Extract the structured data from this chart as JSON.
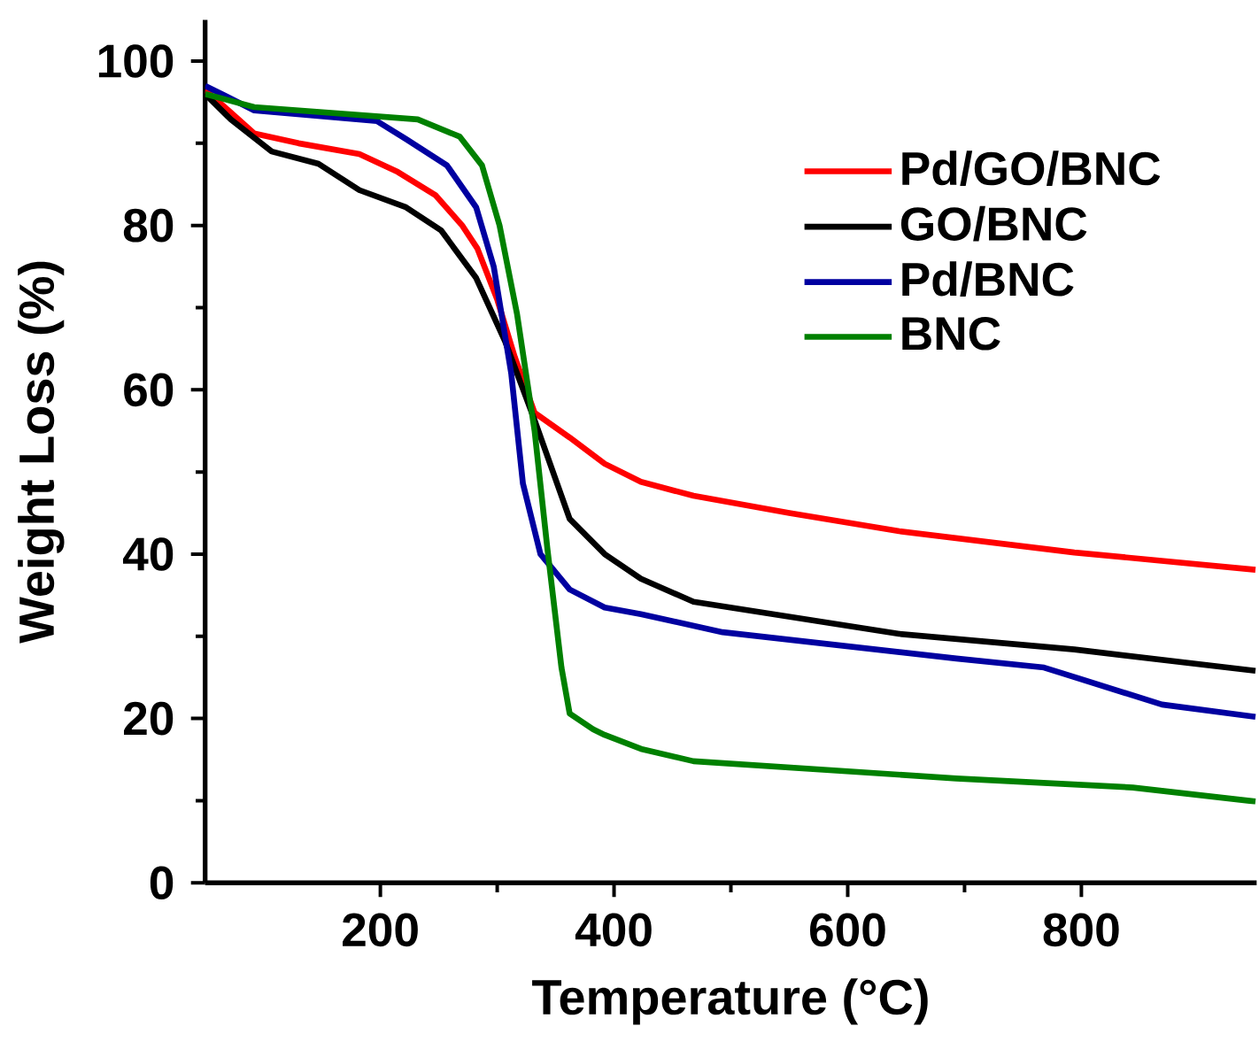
{
  "chart_data": {
    "type": "line",
    "xlabel": "Temperature (°C)",
    "ylabel": "Weight Loss (%)",
    "xlim": [
      50,
      950
    ],
    "ylim": [
      0,
      105
    ],
    "xticks": [
      200,
      400,
      600,
      800
    ],
    "yticks": [
      0,
      20,
      40,
      60,
      80,
      100
    ],
    "legend": "top right",
    "line_style": "solid",
    "series": [
      {
        "name": "Pd/GO/BNC",
        "color": "#ff0000",
        "x": [
          50,
          70,
          92,
          130,
          182,
          215,
          247,
          270,
          283,
          300,
          315,
          332,
          362,
          392,
          423,
          468,
          550,
          644,
          794,
          949
        ],
        "values": [
          96.5,
          94,
          91.2,
          90,
          88.7,
          86.5,
          83.7,
          80,
          77.2,
          71,
          64,
          57.2,
          54.2,
          51,
          48.8,
          47.1,
          45,
          42.8,
          40.2,
          38.1
        ]
      },
      {
        "name": "GO/BNC",
        "color": "#000000",
        "x": [
          50,
          72,
          107,
          147,
          182,
          222,
          252,
          282,
          307,
          332,
          362,
          392,
          423,
          468,
          644,
          794,
          949
        ],
        "values": [
          96,
          92.9,
          89,
          87.5,
          84.3,
          82.2,
          79.4,
          73.6,
          65.8,
          56.3,
          44.3,
          40,
          37,
          34.2,
          30.3,
          28.4,
          25.8
        ]
      },
      {
        "name": "Pd/BNC",
        "color": "#0000a0",
        "x": [
          50,
          92,
          197,
          222,
          257,
          282,
          297,
          312,
          322,
          337,
          362,
          392,
          423,
          493,
          693,
          768,
          869,
          949
        ],
        "values": [
          97,
          94,
          92.7,
          90.5,
          87.3,
          82.2,
          75,
          62,
          48.6,
          40,
          35.7,
          33.5,
          32.7,
          30.5,
          27.3,
          26.2,
          21.7,
          20.2
        ]
      },
      {
        "name": "BNC",
        "color": "#008000",
        "x": [
          50,
          92,
          232,
          268,
          287,
          302,
          317,
          332,
          343,
          355,
          362,
          382,
          392,
          423,
          468,
          693,
          844,
          949
        ],
        "values": [
          96,
          94.4,
          92.9,
          90.8,
          87.3,
          80,
          69.2,
          55,
          40.6,
          26.2,
          20.6,
          18.7,
          18,
          16.3,
          14.8,
          12.7,
          11.6,
          9.9
        ]
      }
    ]
  }
}
